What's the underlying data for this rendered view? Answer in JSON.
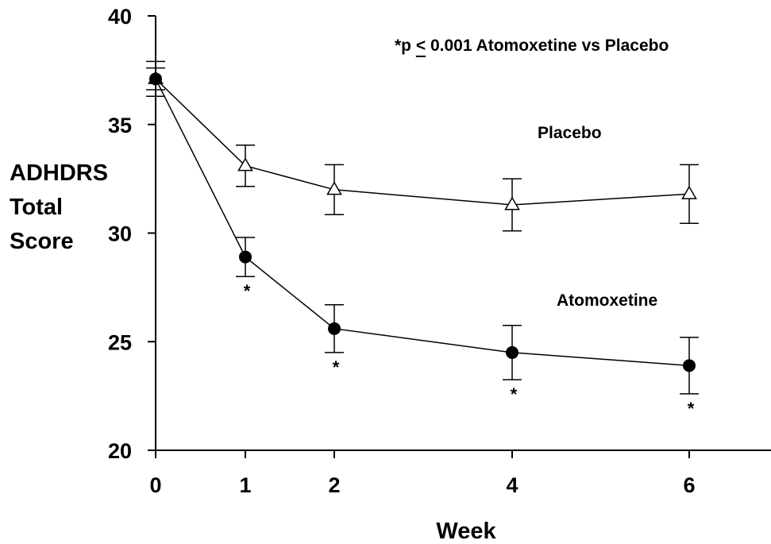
{
  "chart_data": {
    "type": "line",
    "x": [
      0,
      1,
      2,
      4,
      6
    ],
    "xlabel": "Week",
    "ylabel": [
      "ADHDRS",
      "Total",
      "Score"
    ],
    "ylim": [
      20,
      40
    ],
    "yticks": [
      20,
      25,
      30,
      35,
      40
    ],
    "grid": false,
    "annotation": {
      "prefix": "*p ",
      "operator": "<",
      "value": " 0.001 Atomoxetine vs Placebo"
    },
    "significance_marker": "*",
    "series": [
      {
        "name": "Placebo",
        "marker": "open-triangle",
        "values": [
          37.1,
          33.1,
          32.0,
          31.3,
          31.8
        ],
        "error": [
          0.8,
          0.95,
          1.15,
          1.2,
          1.35
        ],
        "significant": [
          false,
          false,
          false,
          false,
          false
        ]
      },
      {
        "name": "Atomoxetine",
        "marker": "filled-circle",
        "values": [
          37.1,
          28.9,
          25.6,
          24.5,
          23.9
        ],
        "error": [
          0.5,
          0.9,
          1.1,
          1.25,
          1.3
        ],
        "significant": [
          false,
          true,
          true,
          true,
          true
        ]
      }
    ]
  }
}
